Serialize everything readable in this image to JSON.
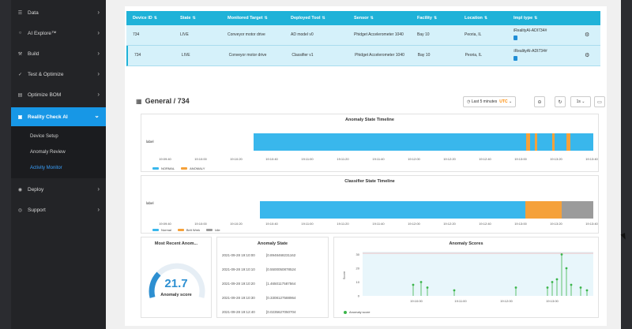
{
  "sidebar": {
    "items": [
      {
        "label": "Data",
        "icon": "database-icon",
        "glyph": "☰"
      },
      {
        "label": "AI Explore™",
        "icon": "lightbulb-icon",
        "glyph": "○"
      },
      {
        "label": "Build",
        "icon": "build-icon",
        "glyph": "⚒"
      },
      {
        "label": "Test & Optimize",
        "icon": "test-icon",
        "glyph": "✓"
      },
      {
        "label": "Optimize BOM",
        "icon": "bom-icon",
        "glyph": "▤"
      },
      {
        "label": "Reality Check AI",
        "icon": "check-icon",
        "glyph": "▣"
      },
      {
        "label": "Deploy",
        "icon": "deploy-icon",
        "glyph": "◉"
      },
      {
        "label": "Support",
        "icon": "support-icon",
        "glyph": "◎"
      }
    ],
    "subitems": [
      {
        "label": "Device Setup"
      },
      {
        "label": "Anomaly Review"
      },
      {
        "label": "Activity Monitor"
      }
    ]
  },
  "device_table": {
    "headers": [
      "Device ID",
      "State",
      "Monitored Target",
      "Deployed Tool",
      "Sensor",
      "Facility",
      "Location",
      "Impl type"
    ],
    "rows": [
      [
        "734",
        "LIVE",
        "Conveyor motor drive",
        "AD model v0",
        "Phidget Accelerometer 1040",
        "Bay 10",
        "Peoria, IL",
        "iRealityAI-ADI734#"
      ],
      [
        "734",
        "LIVE",
        "Conveyor motor drive",
        "Classifier v1",
        "Phidget Accelerometer 1040",
        "Bay 10",
        "Peoria, IL",
        "iRealityAI-ADI734#"
      ]
    ]
  },
  "general": {
    "title": "General",
    "separator": "/",
    "device": "734",
    "time_range": "Last 5 minutes",
    "timezone": "UTC",
    "refresh": "1s"
  },
  "anomaly_timeline": {
    "title": "Anomaly State Timeline",
    "row_label": "label",
    "ticks": [
      "19:09:40",
      "19:10:00",
      "19:10:20",
      "19:10:40",
      "19:11:00",
      "19:11:20",
      "19:11:40",
      "19:12:00",
      "19:12:20",
      "19:12:40",
      "19:13:00",
      "19:13:20",
      "19:13:40"
    ],
    "legend": [
      {
        "name": "NORMAL",
        "color": "#39b7ec"
      },
      {
        "name": "ANOMALY",
        "color": "#f5a13a"
      }
    ]
  },
  "classifier_timeline": {
    "title": "Classifier State Timeline",
    "row_label": "label",
    "ticks": [
      "19:09:40",
      "19:10:00",
      "19:10:20",
      "19:10:40",
      "19:11:00",
      "19:11:20",
      "19:11:40",
      "19:12:00",
      "19:12:20",
      "19:12:40",
      "19:13:00",
      "19:13:20",
      "19:13:40"
    ],
    "legend": [
      {
        "name": "Normal",
        "color": "#39b7ec"
      },
      {
        "name": "Belt Wrek",
        "color": "#f5a13a"
      },
      {
        "name": "Idle",
        "color": "#9b9b9b"
      }
    ]
  },
  "recent": {
    "title": "Most Recent Anom...",
    "value": "21.7",
    "caption": "Anomaly score"
  },
  "anomaly_state": {
    "title": "Anomaly State",
    "rows": [
      [
        "2021-09-28 19:10:00",
        "[0.8948468231162"
      ],
      [
        "2021-09-28 19:10:10",
        "[0.5500050878524"
      ],
      [
        "2021-09-28 19:10:20",
        "[1.4650117587564"
      ],
      [
        "2021-09-28 19:10:30",
        "[0.3308127588964"
      ],
      [
        "2021-09-28 19:12:40",
        "[0.0235627050704"
      ]
    ]
  },
  "anomaly_scores": {
    "title": "Anomaly Scores",
    "ylabel": "Score",
    "legend": "Anomaly score",
    "yticks": [
      "30",
      "20",
      "10",
      "0"
    ],
    "xticks": [
      "19:10:00",
      "19:11:00",
      "19:12:00",
      "19:13:00"
    ]
  }
}
